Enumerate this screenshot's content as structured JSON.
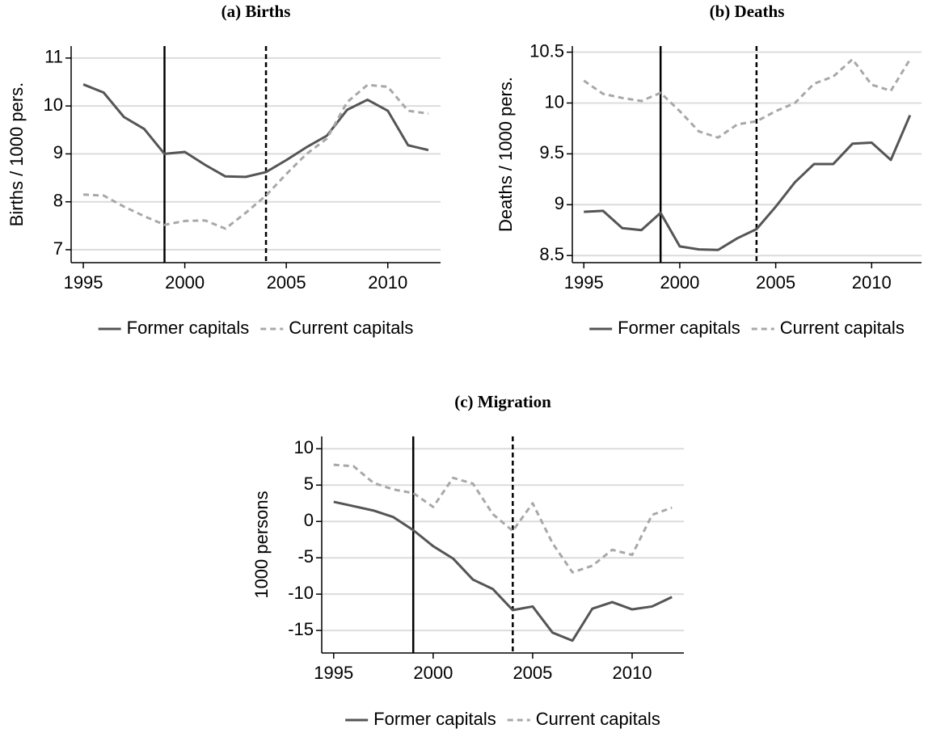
{
  "chart_data": [
    {
      "type": "line",
      "title": "(a)  Births",
      "y_label": "Births / 1000 pers.",
      "x": [
        1995,
        1996,
        1997,
        1998,
        1999,
        2000,
        2001,
        2002,
        2003,
        2004,
        2005,
        2006,
        2007,
        2008,
        2009,
        2010,
        2011,
        2012
      ],
      "series": [
        {
          "name": "Former capitals",
          "color": "#555555",
          "dash": "solid",
          "values": [
            10.45,
            10.28,
            9.77,
            9.52,
            9.0,
            9.04,
            8.77,
            8.53,
            8.52,
            8.62,
            8.87,
            9.14,
            9.38,
            9.92,
            10.13,
            9.9,
            9.18,
            9.08
          ]
        },
        {
          "name": "Current capitals",
          "color": "#a8a8a8",
          "dash": "dashed",
          "values": [
            8.15,
            8.13,
            7.9,
            7.7,
            7.52,
            7.6,
            7.61,
            7.44,
            7.77,
            8.13,
            8.58,
            9.0,
            9.32,
            10.08,
            10.44,
            10.4,
            9.9,
            9.84
          ]
        }
      ],
      "vlines": [
        {
          "x": 1999,
          "style": "solid"
        },
        {
          "x": 2004,
          "style": "dashed"
        }
      ],
      "xlim": [
        1994.4,
        2012.6
      ],
      "xticks": [
        1995,
        2000,
        2005,
        2010
      ],
      "ylim": [
        6.73,
        11.25
      ],
      "yticks": [
        7,
        8,
        9,
        10,
        11
      ],
      "grid": true
    },
    {
      "type": "line",
      "title": "(b)  Deaths",
      "y_label": "Deaths / 1000 pers.",
      "x": [
        1995,
        1996,
        1997,
        1998,
        1999,
        2000,
        2001,
        2002,
        2003,
        2004,
        2005,
        2006,
        2007,
        2008,
        2009,
        2010,
        2011,
        2012
      ],
      "series": [
        {
          "name": "Former capitals",
          "color": "#555555",
          "dash": "solid",
          "values": [
            8.93,
            8.94,
            8.77,
            8.75,
            8.92,
            8.59,
            8.56,
            8.555,
            8.67,
            8.76,
            8.98,
            9.22,
            9.4,
            9.4,
            9.6,
            9.61,
            9.44,
            9.88
          ]
        },
        {
          "name": "Current capitals",
          "color": "#a8a8a8",
          "dash": "dashed",
          "values": [
            10.22,
            10.09,
            10.05,
            10.02,
            10.1,
            9.92,
            9.72,
            9.66,
            9.79,
            9.82,
            9.92,
            10.0,
            10.19,
            10.26,
            10.43,
            10.18,
            10.12,
            10.43
          ]
        }
      ],
      "vlines": [
        {
          "x": 1999,
          "style": "solid"
        },
        {
          "x": 2004,
          "style": "dashed"
        }
      ],
      "xlim": [
        1994.4,
        2012.6
      ],
      "xticks": [
        1995,
        2000,
        2005,
        2010
      ],
      "ylim": [
        8.43,
        10.56
      ],
      "yticks": [
        8.5,
        9,
        9.5,
        10,
        10.5
      ],
      "grid": true
    },
    {
      "type": "line",
      "title": "(c) Migration",
      "y_label": "1000 persons",
      "x": [
        1995,
        1996,
        1997,
        1998,
        1999,
        2000,
        2001,
        2002,
        2003,
        2004,
        2005,
        2006,
        2007,
        2008,
        2009,
        2010,
        2011,
        2012
      ],
      "series": [
        {
          "name": "Former capitals",
          "color": "#555555",
          "dash": "solid",
          "values": [
            2.7,
            2.1,
            1.5,
            0.6,
            -1.2,
            -3.4,
            -5.1,
            -8.0,
            -9.3,
            -12.2,
            -11.7,
            -15.3,
            -16.4,
            -12.0,
            -11.1,
            -12.1,
            -11.7,
            -10.4
          ]
        },
        {
          "name": "Current capitals",
          "color": "#a8a8a8",
          "dash": "dashed",
          "values": [
            7.8,
            7.6,
            5.3,
            4.4,
            3.9,
            2.0,
            6.0,
            5.2,
            1.0,
            -1.3,
            2.5,
            -3.0,
            -7.0,
            -6.1,
            -3.9,
            -4.6,
            0.9,
            1.9
          ]
        }
      ],
      "vlines": [
        {
          "x": 1999,
          "style": "solid"
        },
        {
          "x": 2004,
          "style": "dashed"
        }
      ],
      "xlim": [
        1994.4,
        2012.6
      ],
      "xticks": [
        1995,
        2000,
        2005,
        2010
      ],
      "ylim": [
        -18.1,
        11.7
      ],
      "yticks": [
        10,
        5,
        0,
        -5,
        -10,
        -15
      ],
      "grid": true
    }
  ]
}
